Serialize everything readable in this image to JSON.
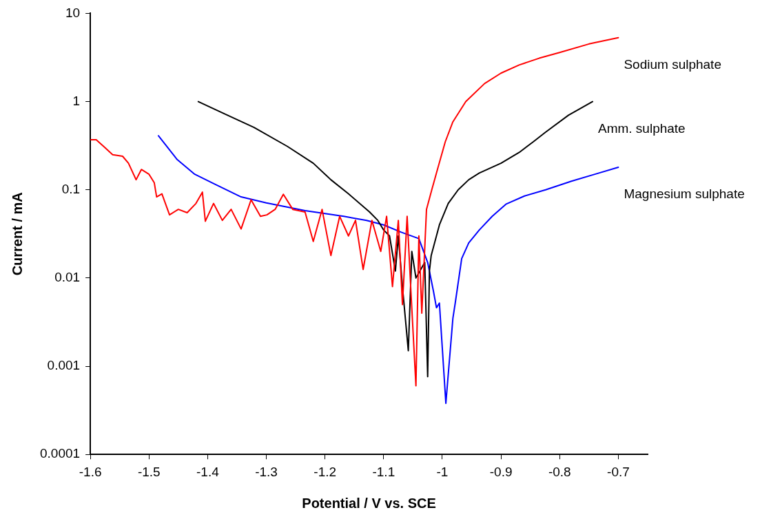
{
  "chart_data": {
    "type": "line",
    "xlabel": "Potential / V vs. SCE",
    "ylabel": "Current / mA",
    "xlim": [
      -1.6,
      -0.65
    ],
    "xticks": [
      -1.6,
      -1.5,
      -1.4,
      -1.3,
      -1.2,
      -1.1,
      -1,
      -0.9,
      -0.8,
      -0.7
    ],
    "ylim": [
      0.0001,
      10
    ],
    "yticks": [
      0.0001,
      0.001,
      0.01,
      0.1,
      1,
      10
    ],
    "log": "y",
    "grid": false,
    "legend": false,
    "marker": "none",
    "line_style": "solid",
    "series": [
      {
        "name": "Sodium sulphate",
        "color": "#ff0000",
        "x": [
          -1.6,
          -1.59,
          -1.575,
          -1.562,
          -1.545,
          -1.535,
          -1.522,
          -1.513,
          -1.5,
          -1.491,
          -1.487,
          -1.478,
          -1.465,
          -1.45,
          -1.435,
          -1.42,
          -1.409,
          -1.404,
          -1.39,
          -1.375,
          -1.36,
          -1.343,
          -1.326,
          -1.31,
          -1.299,
          -1.285,
          -1.271,
          -1.255,
          -1.234,
          -1.22,
          -1.205,
          -1.19,
          -1.175,
          -1.16,
          -1.148,
          -1.135,
          -1.12,
          -1.105,
          -1.095,
          -1.085,
          -1.075,
          -1.068,
          -1.06,
          -1.053,
          -1.045,
          -1.04,
          -1.035,
          -1.027,
          -1.018,
          -1.01,
          -0.995,
          -0.982,
          -0.96,
          -0.928,
          -0.9,
          -0.869,
          -0.835,
          -0.8,
          -0.75,
          -0.7
        ],
        "values": [
          0.37,
          0.37,
          0.3,
          0.25,
          0.24,
          0.2,
          0.13,
          0.17,
          0.15,
          0.12,
          0.083,
          0.09,
          0.052,
          0.06,
          0.055,
          0.07,
          0.094,
          0.044,
          0.07,
          0.045,
          0.06,
          0.036,
          0.077,
          0.05,
          0.052,
          0.06,
          0.089,
          0.06,
          0.056,
          0.026,
          0.06,
          0.018,
          0.05,
          0.03,
          0.045,
          0.0125,
          0.045,
          0.02,
          0.05,
          0.008,
          0.045,
          0.005,
          0.05,
          0.006,
          0.0006,
          0.03,
          0.004,
          0.06,
          0.1,
          0.155,
          0.35,
          0.59,
          1.0,
          1.6,
          2.1,
          2.6,
          3.1,
          3.6,
          4.5,
          5.3
        ]
      },
      {
        "name": "Amm. sulphate",
        "color": "#000000",
        "x": [
          -1.416,
          -1.37,
          -1.321,
          -1.264,
          -1.22,
          -1.19,
          -1.16,
          -1.124,
          -1.11,
          -1.1,
          -1.09,
          -1.08,
          -1.075,
          -1.068,
          -1.062,
          -1.058,
          -1.052,
          -1.045,
          -1.04,
          -1.035,
          -1.03,
          -1.025,
          -1.022,
          -1.019,
          -1.005,
          -0.99,
          -0.973,
          -0.955,
          -0.937,
          -0.9,
          -0.869,
          -0.845,
          -0.824,
          -0.785,
          -0.744
        ],
        "values": [
          1.0,
          0.72,
          0.51,
          0.31,
          0.2,
          0.13,
          0.09,
          0.056,
          0.045,
          0.035,
          0.03,
          0.012,
          0.03,
          0.008,
          null,
          0.0015,
          0.02,
          0.01,
          null,
          null,
          0.015,
          0.00076,
          0.012,
          0.018,
          0.04,
          0.07,
          0.1,
          0.13,
          0.155,
          0.2,
          0.265,
          0.35,
          0.45,
          0.7,
          1.0
        ]
      },
      {
        "name": "Magnesium sulphate",
        "color": "#0000ff",
        "x": [
          -1.484,
          -1.452,
          -1.422,
          -1.387,
          -1.343,
          -1.3,
          -1.234,
          -1.168,
          -1.129,
          -1.1,
          -1.07,
          -1.04,
          -1.025,
          -1.015,
          -1.01,
          -1.005,
          -0.994,
          -0.982,
          -0.978,
          -0.967,
          -0.955,
          -0.937,
          -0.915,
          -0.891,
          -0.86,
          -0.824,
          -0.78,
          -0.74,
          -0.7
        ],
        "values": [
          0.41,
          0.22,
          0.15,
          0.115,
          0.083,
          0.071,
          0.058,
          0.05,
          0.045,
          0.04,
          0.033,
          0.028,
          0.015,
          0.007,
          0.0046,
          0.0052,
          0.00038,
          0.0035,
          0.0052,
          0.0166,
          0.025,
          0.035,
          0.05,
          0.069,
          0.085,
          0.1,
          0.125,
          0.15,
          0.18
        ]
      }
    ]
  }
}
